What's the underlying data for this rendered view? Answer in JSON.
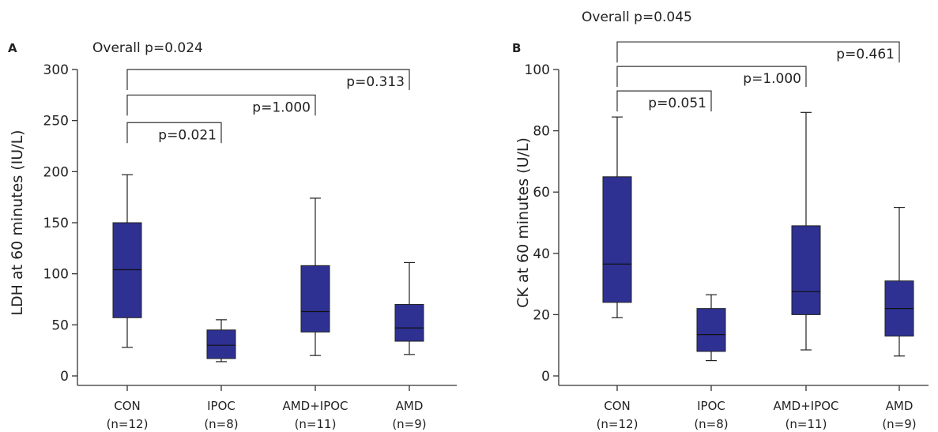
{
  "chart_data": [
    {
      "type": "box",
      "panel": "A",
      "overall_p": "Overall p=0.024",
      "ylabel": "LDH at 60 minutes (IU/L)",
      "ylim": [
        0,
        300
      ],
      "yticks": [
        0,
        50,
        100,
        150,
        200,
        250,
        300
      ],
      "box_color": "#2E3192",
      "categories": [
        {
          "name": "CON",
          "n": "(n=12)"
        },
        {
          "name": "IPOC",
          "n": "(n=8)"
        },
        {
          "name": "AMD+IPOC",
          "n": "(n=11)"
        },
        {
          "name": "AMD",
          "n": "(n=9)"
        }
      ],
      "boxes": [
        {
          "min": 28,
          "q1": 57,
          "median": 104,
          "q3": 150,
          "max": 197
        },
        {
          "min": 14,
          "q1": 17,
          "median": 30,
          "q3": 45,
          "max": 55
        },
        {
          "min": 20,
          "q1": 43,
          "median": 63,
          "q3": 108,
          "max": 174
        },
        {
          "min": 21,
          "q1": 34,
          "median": 47,
          "q3": 70,
          "max": 111
        }
      ],
      "comparisons": [
        {
          "to": 1,
          "label": "p=0.021",
          "y": 248
        },
        {
          "to": 2,
          "label": "p=1.000",
          "y": 275
        },
        {
          "to": 3,
          "label": "p=0.313",
          "y": 300
        }
      ]
    },
    {
      "type": "box",
      "panel": "B",
      "overall_p": "Overall p=0.045",
      "ylabel": "CK at 60 minutes (U/L)",
      "ylim": [
        0,
        100
      ],
      "yticks": [
        0,
        20,
        40,
        60,
        80,
        100
      ],
      "box_color": "#2E3192",
      "categories": [
        {
          "name": "CON",
          "n": "(n=12)"
        },
        {
          "name": "IPOC",
          "n": "(n=8)"
        },
        {
          "name": "AMD+IPOC",
          "n": "(n=11)"
        },
        {
          "name": "AMD",
          "n": "(n=9)"
        }
      ],
      "boxes": [
        {
          "min": 19,
          "q1": 24,
          "median": 36.5,
          "q3": 65,
          "max": 84.5
        },
        {
          "min": 5,
          "q1": 8,
          "median": 13.5,
          "q3": 22,
          "max": 26.5
        },
        {
          "min": 8.5,
          "q1": 20,
          "median": 27.5,
          "q3": 49,
          "max": 86
        },
        {
          "min": 6.5,
          "q1": 13,
          "median": 22,
          "q3": 31,
          "max": 55
        }
      ],
      "comparisons": [
        {
          "to": 1,
          "label": "p=0.051",
          "y": 93
        },
        {
          "to": 2,
          "label": "p=1.000",
          "y": 101
        },
        {
          "to": 3,
          "label": "p=0.461",
          "y": 109
        }
      ]
    }
  ]
}
